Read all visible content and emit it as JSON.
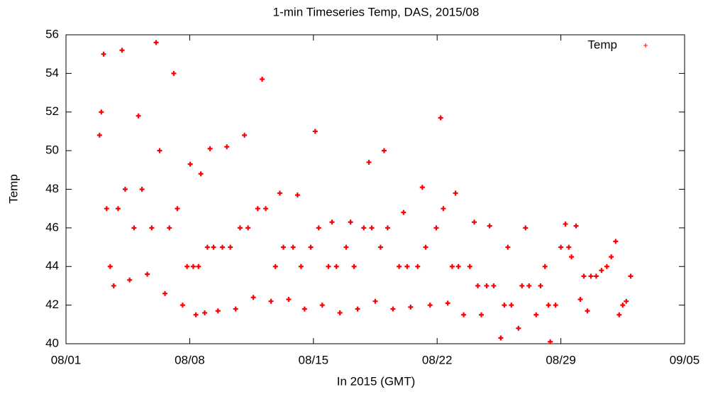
{
  "chart_data": {
    "type": "scatter",
    "title": "1-min Timeseries Temp, DAS, 2015/08",
    "x_label": "In 2015 (GMT)",
    "y_label": "Temp",
    "xlim": [
      1,
      36
    ],
    "ylim": [
      40,
      56
    ],
    "xticks": [
      {
        "value": 1,
        "label": "08/01"
      },
      {
        "value": 8,
        "label": "08/08"
      },
      {
        "value": 15,
        "label": "08/15"
      },
      {
        "value": 22,
        "label": "08/22"
      },
      {
        "value": 29,
        "label": "08/29"
      },
      {
        "value": 36,
        "label": "09/05"
      }
    ],
    "yticks": [
      40,
      42,
      44,
      46,
      48,
      50,
      52,
      54,
      56
    ],
    "grid": false,
    "legend": "top-right",
    "series": [
      {
        "name": "Temp",
        "color": "#ff0000",
        "x": [
          2.9,
          3.0,
          3.13,
          3.3,
          3.5,
          3.7,
          3.95,
          4.17,
          4.35,
          4.6,
          4.85,
          5.1,
          5.3,
          5.6,
          5.85,
          6.1,
          6.3,
          6.6,
          6.85,
          7.1,
          7.3,
          7.6,
          7.85,
          8.03,
          8.2,
          8.35,
          8.5,
          8.63,
          8.85,
          9.0,
          9.15,
          9.35,
          9.6,
          9.85,
          10.1,
          10.3,
          10.6,
          10.85,
          11.1,
          11.3,
          11.6,
          11.85,
          12.1,
          12.3,
          12.6,
          12.85,
          13.1,
          13.3,
          13.6,
          13.85,
          14.1,
          14.3,
          14.5,
          14.85,
          15.1,
          15.3,
          15.5,
          15.85,
          16.05,
          16.3,
          16.5,
          16.85,
          17.1,
          17.3,
          17.5,
          17.85,
          18.14,
          18.3,
          18.5,
          18.8,
          19.0,
          19.2,
          19.5,
          19.85,
          20.1,
          20.3,
          20.5,
          20.9,
          21.16,
          21.35,
          21.6,
          21.95,
          22.2,
          22.35,
          22.6,
          22.85,
          23.04,
          23.2,
          23.5,
          23.85,
          24.1,
          24.3,
          24.5,
          24.8,
          24.97,
          25.2,
          25.6,
          25.8,
          26.0,
          26.2,
          26.6,
          26.8,
          27.0,
          27.2,
          27.6,
          27.85,
          28.1,
          28.3,
          28.4,
          28.7,
          29.0,
          29.26,
          29.45,
          29.6,
          29.86,
          30.1,
          30.3,
          30.5,
          30.7,
          31.0,
          31.3,
          31.6,
          31.85,
          32.1,
          32.3,
          32.5,
          32.7,
          32.95
        ],
        "values": [
          50.8,
          52,
          55,
          47,
          44,
          43,
          47,
          55.2,
          48,
          43.3,
          46,
          51.8,
          48,
          43.6,
          46,
          55.6,
          50,
          42.6,
          46,
          54,
          47,
          42,
          44,
          49.3,
          44,
          41.5,
          44,
          48.8,
          41.6,
          45,
          50.1,
          45,
          41.7,
          45,
          50.2,
          45,
          41.8,
          46,
          50.8,
          46,
          42.4,
          47,
          53.7,
          47,
          42.2,
          44,
          47.8,
          45,
          42.3,
          45,
          47.7,
          44,
          41.8,
          45,
          51,
          46,
          42,
          44,
          46.3,
          44,
          41.6,
          45,
          46.3,
          44,
          41.8,
          46,
          49.4,
          46,
          42.2,
          45,
          50,
          46,
          41.8,
          44,
          46.8,
          44,
          41.9,
          44,
          48.1,
          45,
          42,
          46,
          51.7,
          47,
          42.1,
          44,
          47.8,
          44,
          41.5,
          44,
          46.3,
          43,
          41.5,
          43,
          46.1,
          43,
          40.3,
          42,
          45,
          42,
          40.8,
          43,
          46,
          43,
          41.5,
          43,
          44,
          42,
          40.1,
          42,
          45,
          46.2,
          45,
          44.5,
          46.1,
          42.3,
          43.5,
          41.7,
          43.5,
          43.5,
          43.8,
          44,
          44.5,
          45.3,
          41.5,
          42,
          42.2,
          43.5
        ]
      }
    ]
  }
}
